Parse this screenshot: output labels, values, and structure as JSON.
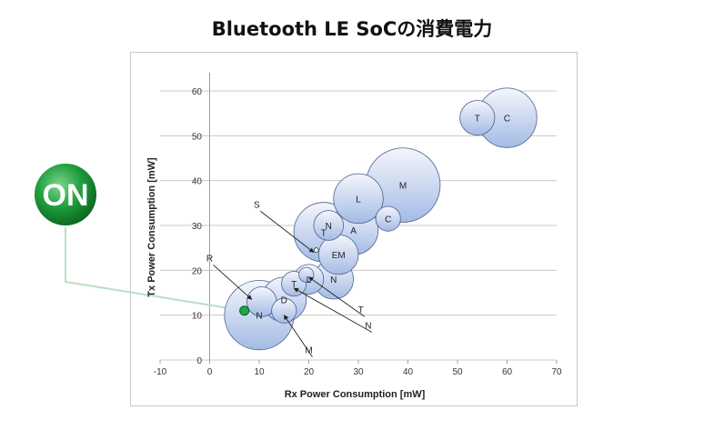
{
  "page": {
    "title": "Bluetooth LE SoCの消費電力"
  },
  "logo": {
    "text": "ON"
  },
  "colors": {
    "bubble_fill_top": "#f2f5fc",
    "bubble_fill_bottom": "#a7bde6",
    "bubble_stroke": "#4a5f8c",
    "grid": "#c8c8c8",
    "marker": "#1fa64a",
    "leader": "#b8e0c4",
    "logo_green": "#1a9a3a"
  },
  "chart_data": {
    "type": "bubble",
    "title": "",
    "xlabel": "Rx Power Consumption [mW]",
    "ylabel": "Tx Power Consumption [mW]",
    "xlim": [
      -10,
      70
    ],
    "ylim": [
      0,
      60
    ],
    "xticks": [
      -10,
      0,
      10,
      20,
      30,
      40,
      50,
      60,
      70
    ],
    "yticks": [
      0,
      10,
      20,
      30,
      40,
      50,
      60
    ],
    "grid": "horizontal",
    "points": [
      {
        "x": 10,
        "y": 10,
        "r": 7,
        "label": "N"
      },
      {
        "x": 15,
        "y": 13.5,
        "r": 4.5,
        "label": "D"
      },
      {
        "x": 10.5,
        "y": 13,
        "r": 3,
        "label": ""
      },
      {
        "x": 15,
        "y": 11,
        "r": 2.5,
        "label": ""
      },
      {
        "x": 25,
        "y": 18,
        "r": 4,
        "label": "N"
      },
      {
        "x": 20,
        "y": 18,
        "r": 3,
        "label": "L"
      },
      {
        "x": 17,
        "y": 17,
        "r": 2.5,
        "label": "T"
      },
      {
        "x": 19.5,
        "y": 19,
        "r": 1.5,
        "label": ""
      },
      {
        "x": 26,
        "y": 23.5,
        "r": 4,
        "label": "EM"
      },
      {
        "x": 23,
        "y": 28.5,
        "r": 6,
        "label": "T"
      },
      {
        "x": 29,
        "y": 29,
        "r": 5,
        "label": "A"
      },
      {
        "x": 24,
        "y": 30,
        "r": 3,
        "label": "N"
      },
      {
        "x": 36,
        "y": 31.5,
        "r": 2.5,
        "label": "C"
      },
      {
        "x": 30,
        "y": 36,
        "r": 5,
        "label": "L"
      },
      {
        "x": 39,
        "y": 39,
        "r": 7.5,
        "label": "M"
      },
      {
        "x": 54,
        "y": 54,
        "r": 3.5,
        "label": "T"
      },
      {
        "x": 60,
        "y": 54,
        "r": 6,
        "label": "C"
      }
    ],
    "annotations": [
      {
        "label": "S",
        "text_x": 9.5,
        "text_y": 34,
        "to_x": 21,
        "to_y": 24
      },
      {
        "label": "R",
        "text_x": 0,
        "text_y": 22,
        "to_x": 8.5,
        "to_y": 13.5
      },
      {
        "label": "T",
        "text_x": 30.5,
        "text_y": 10.5,
        "to_x": 20,
        "to_y": 18.5
      },
      {
        "label": "N",
        "text_x": 32,
        "text_y": 7,
        "to_x": 17,
        "to_y": 16
      },
      {
        "label": "M",
        "text_x": 20,
        "text_y": 1.5,
        "to_x": 15,
        "to_y": 10
      }
    ],
    "highlight": {
      "x": 7,
      "y": 11
    },
    "bubble_labels_right": [
      {
        "label": "T",
        "x": 54,
        "y": 54
      },
      {
        "label": "C",
        "x": 60,
        "y": 54
      }
    ]
  }
}
